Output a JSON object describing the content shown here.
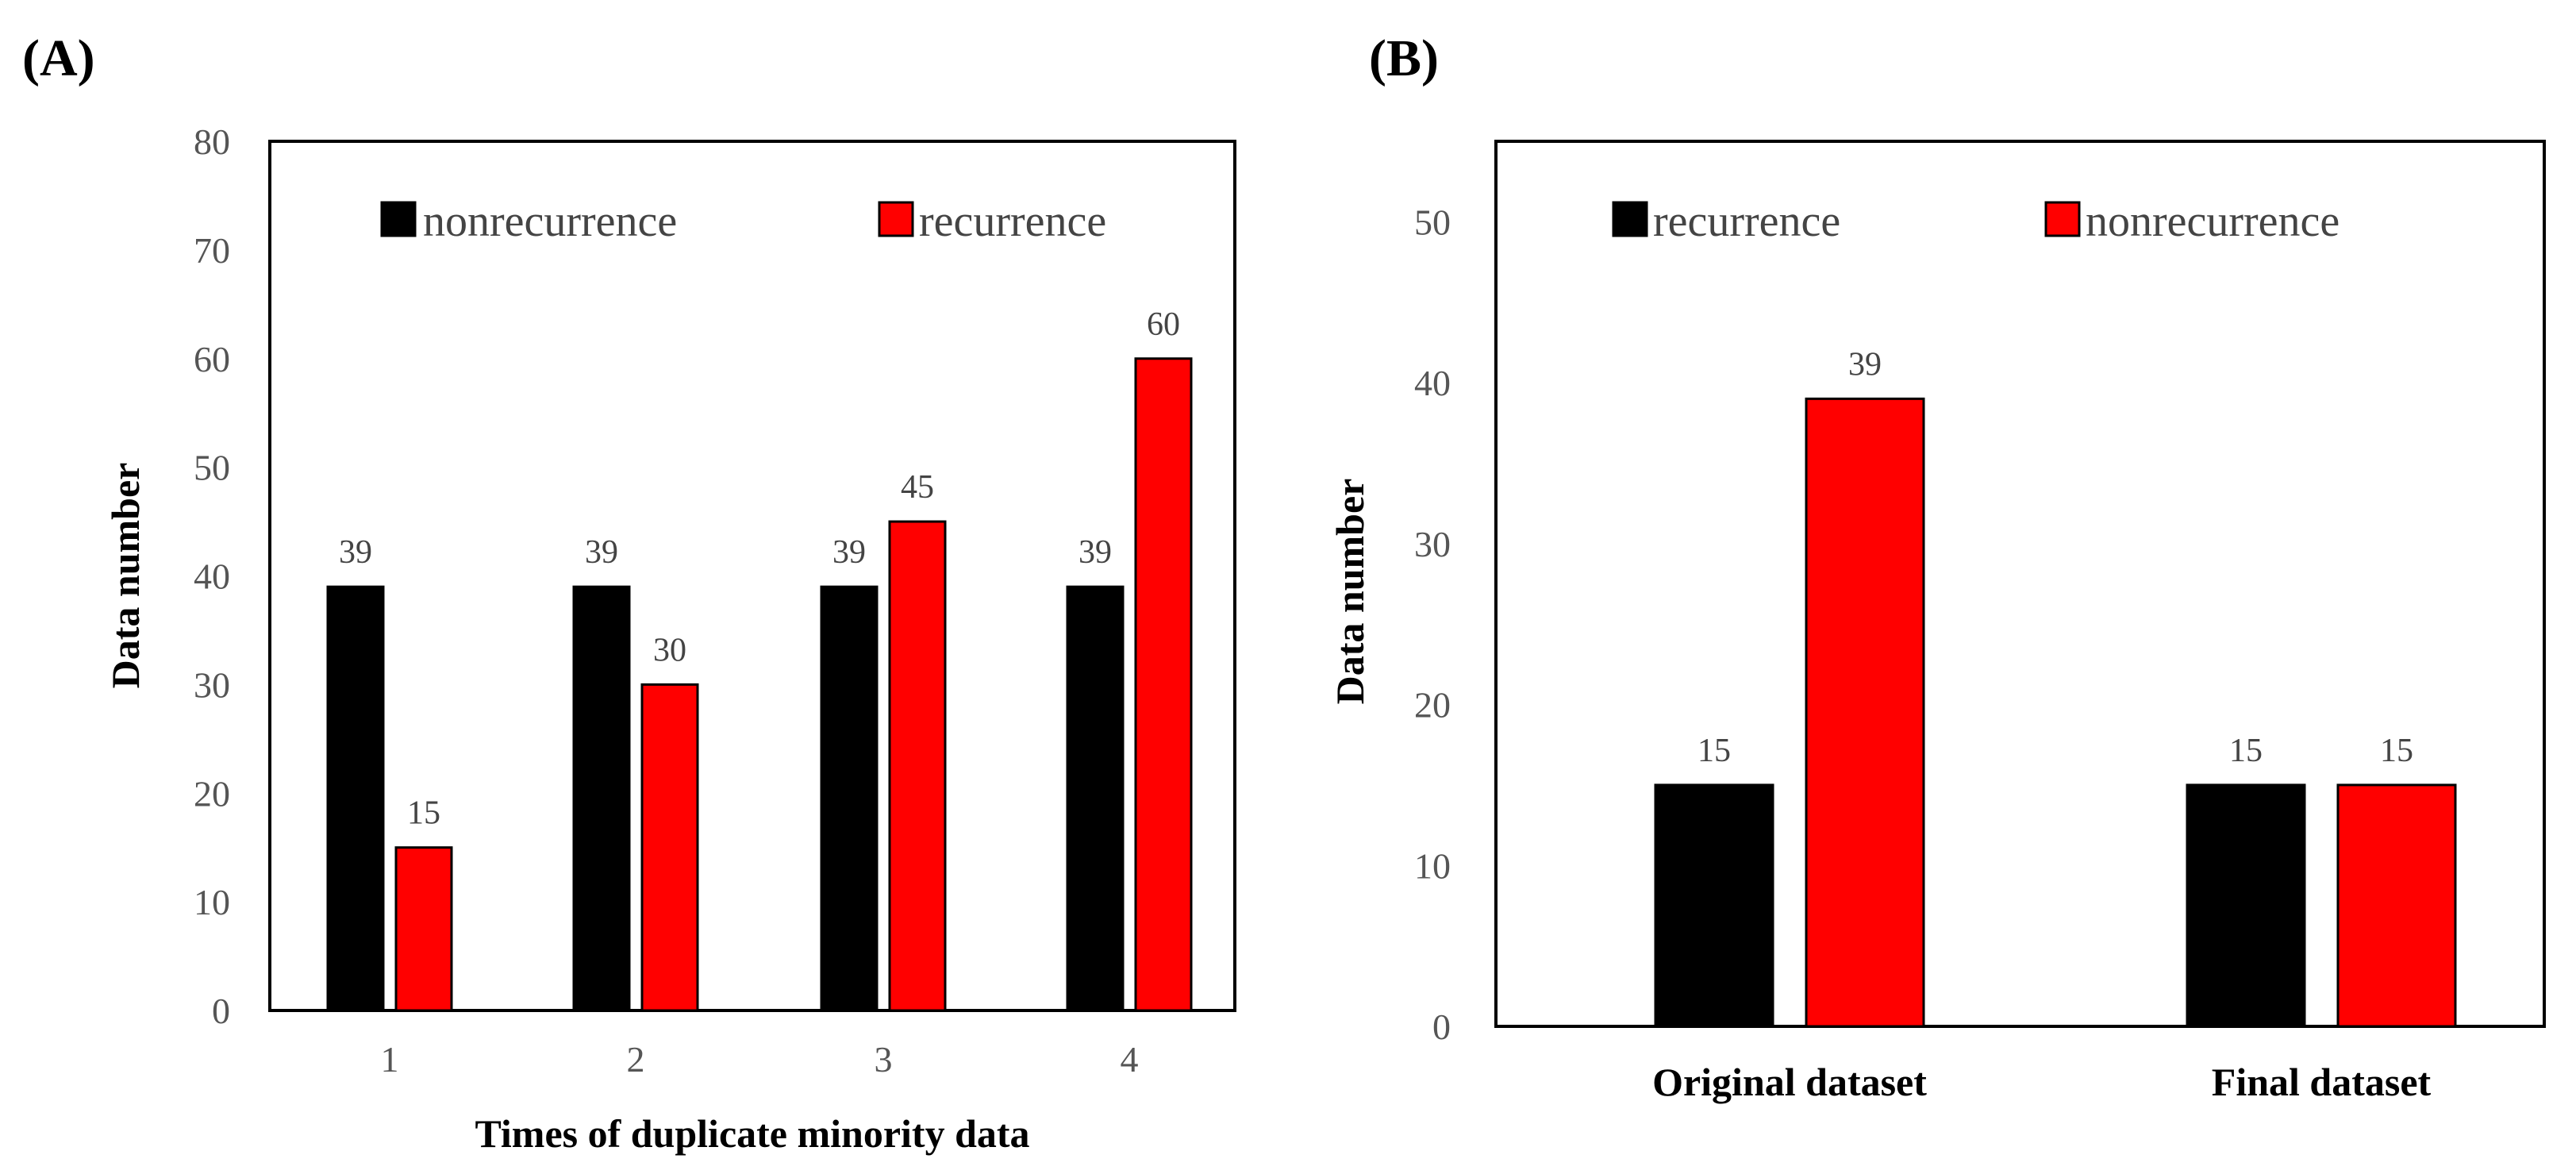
{
  "panels": {
    "a_label": "(A)",
    "b_label": "(B)"
  },
  "colors": {
    "black": "#000000",
    "red": "#ff0000"
  },
  "chart_data": [
    {
      "type": "bar",
      "panel": "(A)",
      "categories": [
        "1",
        "2",
        "3",
        "4"
      ],
      "series": [
        {
          "name": "nonrecurrence",
          "color": "#000000",
          "values": [
            39,
            39,
            39,
            39
          ]
        },
        {
          "name": "recurrence",
          "color": "#ff0000",
          "values": [
            15,
            30,
            45,
            60
          ]
        }
      ],
      "yticks": [
        "0",
        "10",
        "20",
        "30",
        "40",
        "50",
        "60",
        "70",
        "80"
      ],
      "ylim": [
        0,
        80
      ],
      "xlabel": "Times of duplicate minority data",
      "ylabel": "Data number",
      "legend_position": "top"
    },
    {
      "type": "bar",
      "panel": "(B)",
      "categories": [
        "Original dataset",
        "Final dataset"
      ],
      "series": [
        {
          "name": "recurrence",
          "color": "#000000",
          "values": [
            15,
            15
          ]
        },
        {
          "name": "nonrecurrence",
          "color": "#ff0000",
          "values": [
            39,
            15
          ]
        }
      ],
      "yticks": [
        "0",
        "10",
        "20",
        "30",
        "40",
        "50"
      ],
      "ylim": [
        0,
        55
      ],
      "xlabel": "",
      "ylabel": "Data number",
      "legend_position": "top"
    }
  ]
}
